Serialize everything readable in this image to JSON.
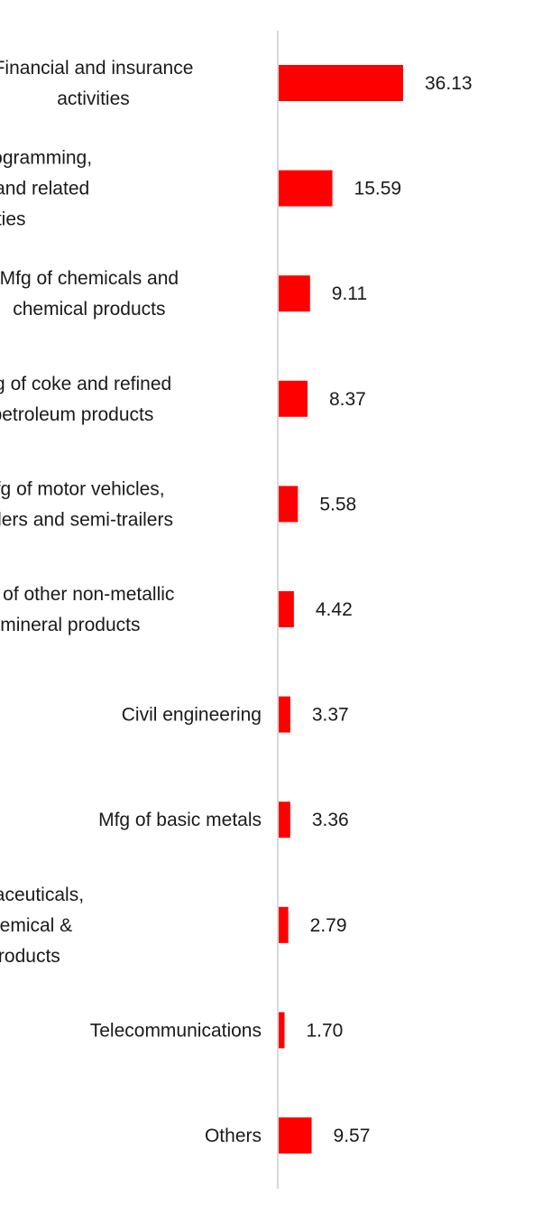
{
  "chart_data": {
    "type": "bar",
    "orientation": "horizontal",
    "title": "",
    "xlabel": "",
    "ylabel": "",
    "grid": false,
    "legend": "none",
    "bar_color": "#ff0000",
    "axis_color": "#d9d9d9",
    "xlim": [
      0,
      42
    ],
    "categories": [
      [
        "Financial and insurance",
        "activities"
      ],
      [
        "Computer programming,",
        "consultancy and related",
        "activities"
      ],
      [
        "Mfg of chemicals and",
        "chemical products"
      ],
      [
        "Mfg of coke and refined",
        "petroleum products"
      ],
      [
        "Mfg of motor vehicles,",
        "trailers and semi-trailers"
      ],
      [
        "Mfg of other non-metallic",
        "mineral products"
      ],
      [
        "Civil engineering"
      ],
      [
        "Mfg of basic metals"
      ],
      [
        "Mfg of pharmaceuticals,",
        "medicinal chemical &",
        "botanical products"
      ],
      [
        "Telecommunications"
      ],
      [
        "Others"
      ]
    ],
    "values": [
      36.13,
      15.59,
      9.11,
      8.37,
      5.58,
      4.42,
      3.37,
      3.36,
      2.79,
      1.7,
      9.57
    ],
    "value_labels": [
      "36.13",
      "15.59",
      "9.11",
      "8.37",
      "5.58",
      "4.42",
      "3.37",
      "3.36",
      "2.79",
      "1.70",
      "9.57"
    ]
  }
}
